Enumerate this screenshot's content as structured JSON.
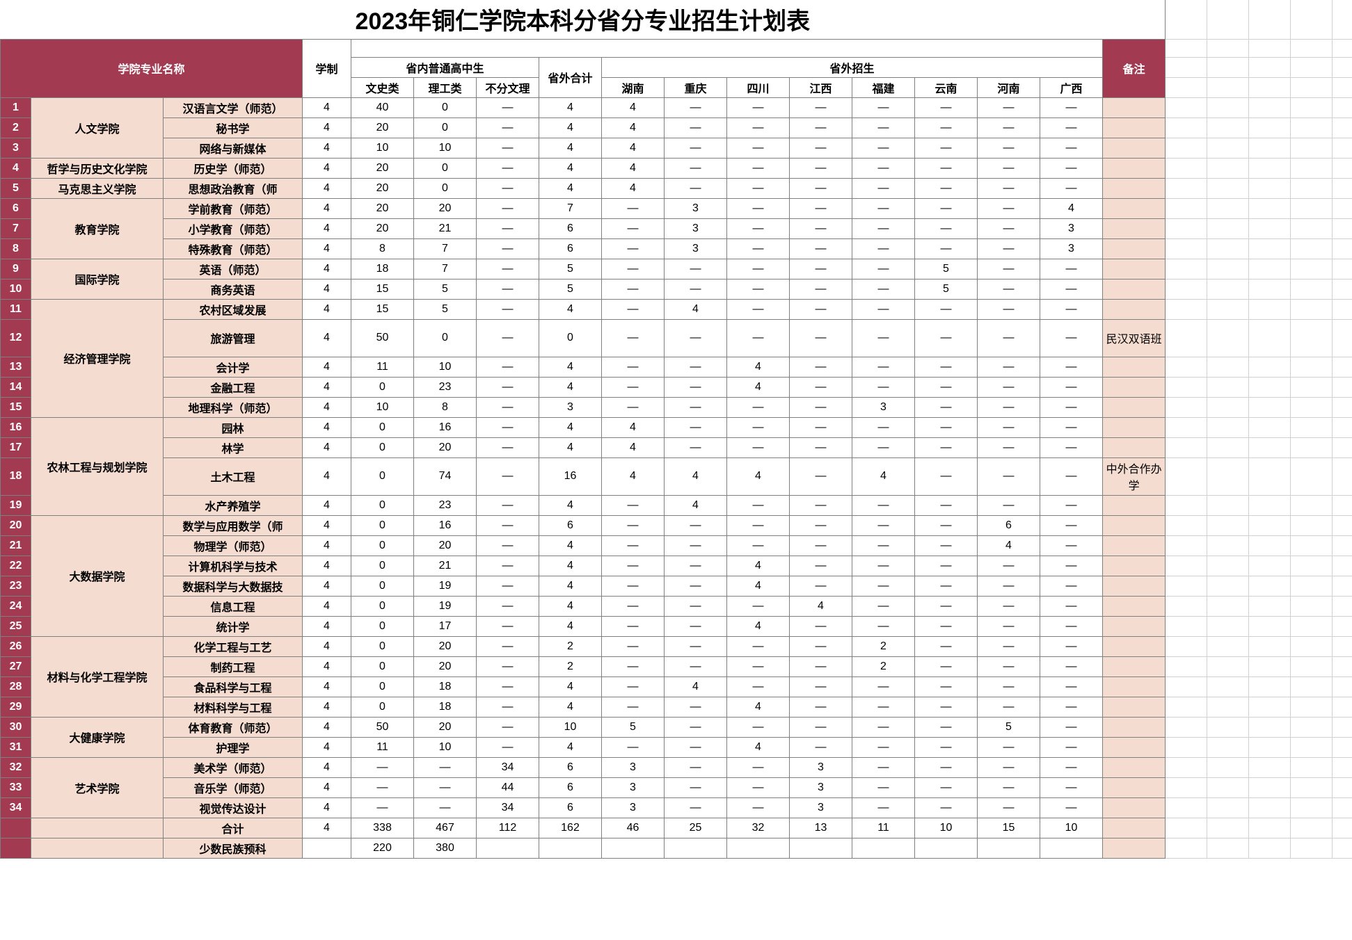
{
  "title": "2023年铜仁学院本科分省分专业招生计划表",
  "header": {
    "col_major_name": "学院专业名称",
    "col_duration": "学制",
    "col_in_province": "省内普通高中生",
    "col_in_wen": "文史类",
    "col_in_li": "理工类",
    "col_in_nf": "不分文理",
    "col_out_total": "省外合计",
    "col_out_group": "省外招生",
    "col_hunan": "湖南",
    "col_chongqing": "重庆",
    "col_sichuan": "四川",
    "col_jiangxi": "江西",
    "col_fujian": "福建",
    "col_yunnan": "云南",
    "col_henan": "河南",
    "col_guangxi": "广西",
    "col_note": "备注"
  },
  "colleges": [
    {
      "name": "人文学院",
      "rows": [
        {
          "idx": "1",
          "major": "汉语言文学（师范）",
          "dur": "4",
          "wen": "40",
          "li": "0",
          "nf": "—",
          "out": "4",
          "p": [
            "4",
            "—",
            "—",
            "—",
            "—",
            "—",
            "—",
            "—"
          ],
          "note": ""
        },
        {
          "idx": "2",
          "major": "秘书学",
          "dur": "4",
          "wen": "20",
          "li": "0",
          "nf": "—",
          "out": "4",
          "p": [
            "4",
            "—",
            "—",
            "—",
            "—",
            "—",
            "—",
            "—"
          ],
          "note": ""
        },
        {
          "idx": "3",
          "major": "网络与新媒体",
          "dur": "4",
          "wen": "10",
          "li": "10",
          "nf": "—",
          "out": "4",
          "p": [
            "4",
            "—",
            "—",
            "—",
            "—",
            "—",
            "—",
            "—"
          ],
          "note": ""
        }
      ]
    },
    {
      "name": "哲学与历史文化学院",
      "rows": [
        {
          "idx": "4",
          "major": "历史学（师范）",
          "dur": "4",
          "wen": "20",
          "li": "0",
          "nf": "—",
          "out": "4",
          "p": [
            "4",
            "—",
            "—",
            "—",
            "—",
            "—",
            "—",
            "—"
          ],
          "note": ""
        }
      ]
    },
    {
      "name": "马克思主义学院",
      "rows": [
        {
          "idx": "5",
          "major": "思想政治教育（师",
          "dur": "4",
          "wen": "20",
          "li": "0",
          "nf": "—",
          "out": "4",
          "p": [
            "4",
            "—",
            "—",
            "—",
            "—",
            "—",
            "—",
            "—"
          ],
          "note": ""
        }
      ]
    },
    {
      "name": "教育学院",
      "rows": [
        {
          "idx": "6",
          "major": "学前教育（师范）",
          "dur": "4",
          "wen": "20",
          "li": "20",
          "nf": "—",
          "out": "7",
          "p": [
            "—",
            "3",
            "—",
            "—",
            "—",
            "—",
            "—",
            "4"
          ],
          "note": ""
        },
        {
          "idx": "7",
          "major": "小学教育（师范）",
          "dur": "4",
          "wen": "20",
          "li": "21",
          "nf": "—",
          "out": "6",
          "p": [
            "—",
            "3",
            "—",
            "—",
            "—",
            "—",
            "—",
            "3"
          ],
          "note": ""
        },
        {
          "idx": "8",
          "major": "特殊教育（师范）",
          "dur": "4",
          "wen": "8",
          "li": "7",
          "nf": "—",
          "out": "6",
          "p": [
            "—",
            "3",
            "—",
            "—",
            "—",
            "—",
            "—",
            "3"
          ],
          "note": ""
        }
      ]
    },
    {
      "name": "国际学院",
      "rows": [
        {
          "idx": "9",
          "major": "英语（师范）",
          "dur": "4",
          "wen": "18",
          "li": "7",
          "nf": "—",
          "out": "5",
          "p": [
            "—",
            "—",
            "—",
            "—",
            "—",
            "5",
            "—",
            "—"
          ],
          "note": ""
        },
        {
          "idx": "10",
          "major": "商务英语",
          "dur": "4",
          "wen": "15",
          "li": "5",
          "nf": "—",
          "out": "5",
          "p": [
            "—",
            "—",
            "—",
            "—",
            "—",
            "5",
            "—",
            "—"
          ],
          "note": ""
        }
      ]
    },
    {
      "name": "经济管理学院",
      "rows": [
        {
          "idx": "11",
          "major": "农村区域发展",
          "dur": "4",
          "wen": "15",
          "li": "5",
          "nf": "—",
          "out": "4",
          "p": [
            "—",
            "4",
            "—",
            "—",
            "—",
            "—",
            "—",
            "—"
          ],
          "note": ""
        },
        {
          "idx": "12",
          "major": "旅游管理",
          "dur": "4",
          "wen": "50",
          "li": "0",
          "nf": "—",
          "out": "0",
          "p": [
            "—",
            "—",
            "—",
            "—",
            "—",
            "—",
            "—",
            "—"
          ],
          "note": "民汉双语班",
          "tall": true
        },
        {
          "idx": "13",
          "major": "会计学",
          "dur": "4",
          "wen": "11",
          "li": "10",
          "nf": "—",
          "out": "4",
          "p": [
            "—",
            "—",
            "4",
            "—",
            "—",
            "—",
            "—",
            "—"
          ],
          "note": ""
        },
        {
          "idx": "14",
          "major": "金融工程",
          "dur": "4",
          "wen": "0",
          "li": "23",
          "nf": "—",
          "out": "4",
          "p": [
            "—",
            "—",
            "4",
            "—",
            "—",
            "—",
            "—",
            "—"
          ],
          "note": ""
        },
        {
          "idx": "15",
          "major": "地理科学（师范）",
          "dur": "4",
          "wen": "10",
          "li": "8",
          "nf": "—",
          "out": "3",
          "p": [
            "—",
            "—",
            "—",
            "—",
            "3",
            "—",
            "—",
            "—"
          ],
          "note": ""
        }
      ]
    },
    {
      "name": "农林工程与规划学院",
      "rows": [
        {
          "idx": "16",
          "major": "园林",
          "dur": "4",
          "wen": "0",
          "li": "16",
          "nf": "—",
          "out": "4",
          "p": [
            "4",
            "—",
            "—",
            "—",
            "—",
            "—",
            "—",
            "—"
          ],
          "note": ""
        },
        {
          "idx": "17",
          "major": "林学",
          "dur": "4",
          "wen": "0",
          "li": "20",
          "nf": "—",
          "out": "4",
          "p": [
            "4",
            "—",
            "—",
            "—",
            "—",
            "—",
            "—",
            "—"
          ],
          "note": ""
        },
        {
          "idx": "18",
          "major": "土木工程",
          "dur": "4",
          "wen": "0",
          "li": "74",
          "nf": "—",
          "out": "16",
          "p": [
            "4",
            "4",
            "4",
            "—",
            "4",
            "—",
            "—",
            "—"
          ],
          "note": "中外合作办学",
          "tall": true
        },
        {
          "idx": "19",
          "major": "水产养殖学",
          "dur": "4",
          "wen": "0",
          "li": "23",
          "nf": "—",
          "out": "4",
          "p": [
            "—",
            "4",
            "—",
            "—",
            "—",
            "—",
            "—",
            "—"
          ],
          "note": ""
        }
      ]
    },
    {
      "name": "大数据学院",
      "rows": [
        {
          "idx": "20",
          "major": "数学与应用数学（师",
          "dur": "4",
          "wen": "0",
          "li": "16",
          "nf": "—",
          "out": "6",
          "p": [
            "—",
            "—",
            "—",
            "—",
            "—",
            "—",
            "6",
            "—"
          ],
          "note": ""
        },
        {
          "idx": "21",
          "major": "物理学（师范）",
          "dur": "4",
          "wen": "0",
          "li": "20",
          "nf": "—",
          "out": "4",
          "p": [
            "—",
            "—",
            "—",
            "—",
            "—",
            "—",
            "4",
            "—"
          ],
          "note": ""
        },
        {
          "idx": "22",
          "major": "计算机科学与技术",
          "dur": "4",
          "wen": "0",
          "li": "21",
          "nf": "—",
          "out": "4",
          "p": [
            "—",
            "—",
            "4",
            "—",
            "—",
            "—",
            "—",
            "—"
          ],
          "note": ""
        },
        {
          "idx": "23",
          "major": "数据科学与大数据技",
          "dur": "4",
          "wen": "0",
          "li": "19",
          "nf": "—",
          "out": "4",
          "p": [
            "—",
            "—",
            "4",
            "—",
            "—",
            "—",
            "—",
            "—"
          ],
          "note": ""
        },
        {
          "idx": "24",
          "major": "信息工程",
          "dur": "4",
          "wen": "0",
          "li": "19",
          "nf": "—",
          "out": "4",
          "p": [
            "—",
            "—",
            "—",
            "4",
            "—",
            "—",
            "—",
            "—"
          ],
          "note": ""
        },
        {
          "idx": "25",
          "major": "统计学",
          "dur": "4",
          "wen": "0",
          "li": "17",
          "nf": "—",
          "out": "4",
          "p": [
            "—",
            "—",
            "4",
            "—",
            "—",
            "—",
            "—",
            "—"
          ],
          "note": ""
        }
      ]
    },
    {
      "name": "材料与化学工程学院",
      "rows": [
        {
          "idx": "26",
          "major": "化学工程与工艺",
          "dur": "4",
          "wen": "0",
          "li": "20",
          "nf": "—",
          "out": "2",
          "p": [
            "—",
            "—",
            "—",
            "—",
            "2",
            "—",
            "—",
            "—"
          ],
          "note": ""
        },
        {
          "idx": "27",
          "major": "制药工程",
          "dur": "4",
          "wen": "0",
          "li": "20",
          "nf": "—",
          "out": "2",
          "p": [
            "—",
            "—",
            "—",
            "—",
            "2",
            "—",
            "—",
            "—"
          ],
          "note": ""
        },
        {
          "idx": "28",
          "major": "食品科学与工程",
          "dur": "4",
          "wen": "0",
          "li": "18",
          "nf": "—",
          "out": "4",
          "p": [
            "—",
            "4",
            "—",
            "—",
            "—",
            "—",
            "—",
            "—"
          ],
          "note": ""
        },
        {
          "idx": "29",
          "major": "材料科学与工程",
          "dur": "4",
          "wen": "0",
          "li": "18",
          "nf": "—",
          "out": "4",
          "p": [
            "—",
            "—",
            "4",
            "—",
            "—",
            "—",
            "—",
            "—"
          ],
          "note": ""
        }
      ]
    },
    {
      "name": "大健康学院",
      "rows": [
        {
          "idx": "30",
          "major": "体育教育（师范）",
          "dur": "4",
          "wen": "50",
          "li": "20",
          "nf": "—",
          "out": "10",
          "p": [
            "5",
            "—",
            "—",
            "—",
            "—",
            "—",
            "5",
            "—"
          ],
          "note": ""
        },
        {
          "idx": "31",
          "major": "护理学",
          "dur": "4",
          "wen": "11",
          "li": "10",
          "nf": "—",
          "out": "4",
          "p": [
            "—",
            "—",
            "4",
            "—",
            "—",
            "—",
            "—",
            "—"
          ],
          "note": ""
        }
      ]
    },
    {
      "name": "艺术学院",
      "rows": [
        {
          "idx": "32",
          "major": "美术学（师范）",
          "dur": "4",
          "wen": "—",
          "li": "—",
          "nf": "34",
          "out": "6",
          "p": [
            "3",
            "—",
            "—",
            "3",
            "—",
            "—",
            "—",
            "—"
          ],
          "note": ""
        },
        {
          "idx": "33",
          "major": "音乐学（师范）",
          "dur": "4",
          "wen": "—",
          "li": "—",
          "nf": "44",
          "out": "6",
          "p": [
            "3",
            "—",
            "—",
            "3",
            "—",
            "—",
            "—",
            "—"
          ],
          "note": ""
        },
        {
          "idx": "34",
          "major": "视觉传达设计",
          "dur": "4",
          "wen": "—",
          "li": "—",
          "nf": "34",
          "out": "6",
          "p": [
            "3",
            "—",
            "—",
            "3",
            "—",
            "—",
            "—",
            "—"
          ],
          "note": ""
        }
      ]
    }
  ],
  "summary": {
    "label": "合计",
    "dur": "4",
    "wen": "338",
    "li": "467",
    "nf": "112",
    "out": "162",
    "p": [
      "46",
      "25",
      "32",
      "13",
      "11",
      "10",
      "15",
      "10"
    ],
    "note": ""
  },
  "minority": {
    "label": "少数民族预科",
    "wen": "220",
    "li": "380"
  },
  "widths": {
    "idx": 44,
    "college": 190,
    "major": 200,
    "dur": 70,
    "wen": 90,
    "li": 90,
    "nf": 90,
    "out": 90,
    "prov": 90,
    "note": 90,
    "extra": 60
  },
  "colors": {
    "maroon": "#a23a52",
    "peach": "#f5dcd1",
    "border": "#7f7f7f"
  }
}
